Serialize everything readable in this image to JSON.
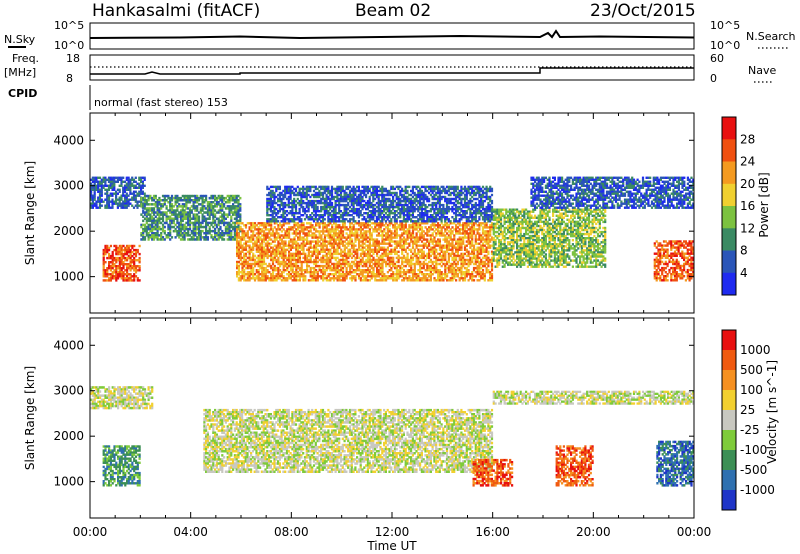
{
  "header": {
    "station": "Hankasalmi (fitACF)",
    "beam": "Beam 02",
    "date": "23/Oct/2015"
  },
  "noise_panel": {
    "left_label": "N.Sky",
    "right_label": "N.Search",
    "left_ticks": [
      "10^5",
      "10^0"
    ],
    "right_ticks": [
      "10^5",
      "10^0"
    ]
  },
  "freq_panel": {
    "left_label_1": "Freq.",
    "left_label_2": "[MHz]",
    "right_label": "Nave",
    "left_ticks": [
      "18",
      "8"
    ],
    "right_ticks": [
      "60",
      "0"
    ]
  },
  "cpid_panel": {
    "label": "CPID",
    "text": "normal (fast stereo) 153"
  },
  "chart_data": [
    {
      "type": "heatmap",
      "name": "power",
      "xlabel": "Time UT",
      "ylabel": "Slant Range [km]",
      "x_ticks": [
        "00:00",
        "04:00",
        "08:00",
        "12:00",
        "16:00",
        "20:00",
        "00:00"
      ],
      "y_ticks": [
        1000,
        2000,
        3000,
        4000
      ],
      "ylim": [
        200,
        4600
      ],
      "colorbar": {
        "label": "Power [dB]",
        "ticks": [
          "4",
          "8",
          "12",
          "16",
          "20",
          "24",
          "28"
        ],
        "colors": [
          "#1f2bf0",
          "#2a55b8",
          "#3a8a63",
          "#7cc240",
          "#f0d030",
          "#f49a20",
          "#f05010",
          "#e81010"
        ]
      },
      "regions": [
        {
          "t0": 0.0,
          "t1": 2.2,
          "r0": 2500,
          "r1": 3200,
          "level": 1
        },
        {
          "t0": 0.5,
          "t1": 2.0,
          "r0": 900,
          "r1": 1700,
          "level": 6
        },
        {
          "t0": 2.0,
          "t1": 6.0,
          "r0": 1800,
          "r1": 2800,
          "level": 2
        },
        {
          "t0": 5.8,
          "t1": 16.0,
          "r0": 900,
          "r1": 2200,
          "level": 5
        },
        {
          "t0": 7.0,
          "t1": 16.0,
          "r0": 2200,
          "r1": 3000,
          "level": 1
        },
        {
          "t0": 16.0,
          "t1": 20.5,
          "r0": 1200,
          "r1": 2500,
          "level": 3
        },
        {
          "t0": 17.5,
          "t1": 24.0,
          "r0": 2500,
          "r1": 3200,
          "level": 1
        },
        {
          "t0": 22.4,
          "t1": 24.0,
          "r0": 900,
          "r1": 1800,
          "level": 6
        }
      ]
    },
    {
      "type": "heatmap",
      "name": "velocity",
      "xlabel": "Time UT",
      "ylabel": "Slant Range [km]",
      "x_ticks": [
        "00:00",
        "04:00",
        "08:00",
        "12:00",
        "16:00",
        "20:00",
        "00:00"
      ],
      "y_ticks": [
        1000,
        2000,
        3000,
        4000
      ],
      "ylim": [
        200,
        4600
      ],
      "colorbar": {
        "label": "Velocity [m s^-1]",
        "ticks": [
          "1000",
          "500",
          "100",
          "25",
          "-25",
          "-100",
          "-500",
          "-1000"
        ],
        "colors": [
          "#1f35c8",
          "#2f70b0",
          "#3c8f55",
          "#7ecb3a",
          "#c8c8c0",
          "#f2d030",
          "#f59020",
          "#f05a10",
          "#e81010"
        ]
      },
      "regions": [
        {
          "t0": 0.0,
          "t1": 2.5,
          "r0": 2600,
          "r1": 3100,
          "level": 4
        },
        {
          "t0": 0.5,
          "t1": 2.0,
          "r0": 900,
          "r1": 1800,
          "level": 2
        },
        {
          "t0": 4.5,
          "t1": 16.0,
          "r0": 1200,
          "r1": 2600,
          "level": 4
        },
        {
          "t0": 15.2,
          "t1": 16.8,
          "r0": 900,
          "r1": 1500,
          "level": 7
        },
        {
          "t0": 18.5,
          "t1": 20.0,
          "r0": 900,
          "r1": 1800,
          "level": 7
        },
        {
          "t0": 16.0,
          "t1": 24.0,
          "r0": 2700,
          "r1": 3000,
          "level": 4
        },
        {
          "t0": 22.5,
          "t1": 24.0,
          "r0": 900,
          "r1": 1900,
          "level": 1
        }
      ]
    }
  ]
}
